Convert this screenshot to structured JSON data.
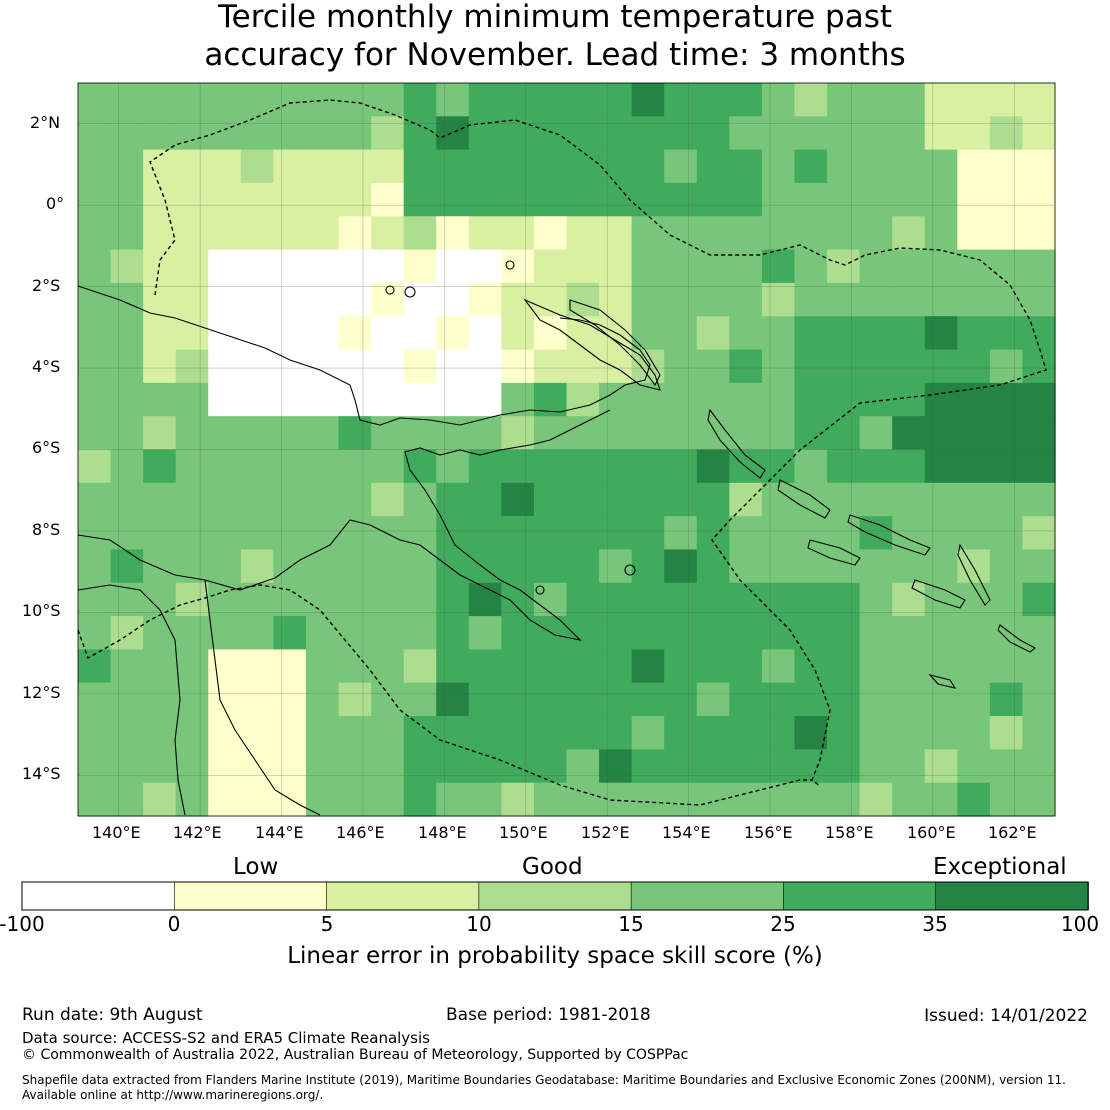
{
  "title": {
    "line1": "Tercile monthly minimum temperature past",
    "line2": "accuracy for November. Lead time: 3 months"
  },
  "map": {
    "lon_range": [
      139,
      163
    ],
    "lat_range": [
      -15,
      3
    ],
    "lat_labels": [
      "2°N",
      "0°",
      "2°S",
      "4°S",
      "6°S",
      "8°S",
      "10°S",
      "12°S",
      "14°S"
    ],
    "lon_labels": [
      "140°E",
      "142°E",
      "144°E",
      "146°E",
      "148°E",
      "150°E",
      "152°E",
      "154°E",
      "156°E",
      "158°E",
      "160°E",
      "162°E"
    ],
    "grid": "on"
  },
  "colorbar": {
    "categories": {
      "low": "Low",
      "good": "Good",
      "exceptional": "Exceptional"
    },
    "ticks": [
      "-100",
      "0",
      "5",
      "10",
      "15",
      "25",
      "35",
      "100"
    ],
    "colors": [
      "#ffffff",
      "#ffffcc",
      "#d9f0a3",
      "#addd8e",
      "#78c679",
      "#41ab5d",
      "#238443"
    ],
    "label": "Linear error in probability space skill score (%)"
  },
  "footer": {
    "run_date": "Run date: 9th August",
    "base_period": "Base period: 1981-2018",
    "issued": "Issued: 14/01/2022",
    "data_source": "Data source: ACCESS-S2 and ERA5 Climate Reanalysis",
    "copyright": "© Commonwealth of Australia 2022, Australian Bureau of Meteorology, Supported by COSPPac",
    "shapefile1": "Shapefile data extracted from Flanders Marine Institute (2019), Maritime Boundaries Geodatabase: Maritime Boundaries and Exclusive Economic Zones (200NM), version 11.",
    "shapefile2": "Available online at http://www.marineregions.org/."
  }
}
